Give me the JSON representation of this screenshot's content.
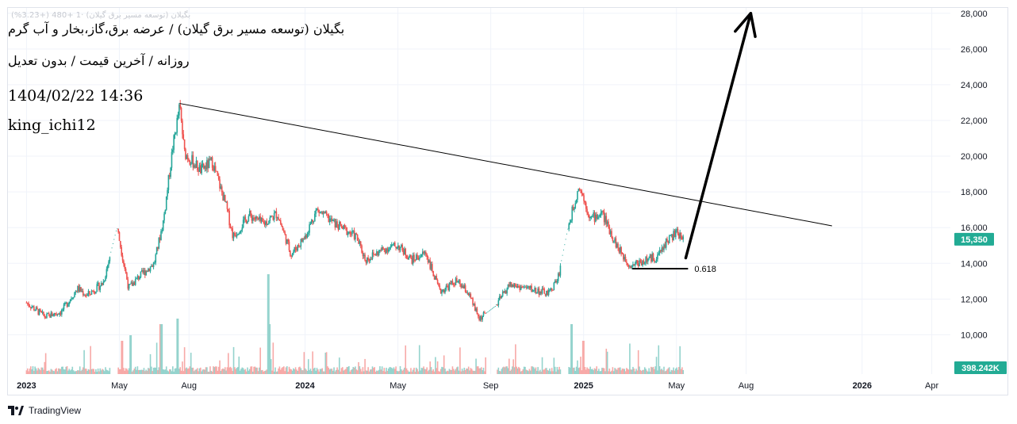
{
  "header": {
    "ghost_text": "بگیلان (توسعه مسیر برق گیلان) ·1  +480 (+3.23%)",
    "title": "بگیلان (توسعه مسیر برق گیلان) / عرضه برق،گاز،بخار و آب گرم",
    "subtitle": "روزانه / آخرین قیمت / بدون تعدیل",
    "date": "1404/02/22 14:36",
    "author": "king_ichi12"
  },
  "brand": {
    "label": "TradingView",
    "icon": "tradingview-logo-icon"
  },
  "colors": {
    "up": "#26a69a",
    "down": "#ef5350",
    "volume_up": "#94d3cd",
    "volume_down": "#f7a9a7",
    "badge": "#22ab94",
    "grid": "#f0f3fa",
    "trendline": "#000000"
  },
  "chart_data": {
    "type": "candlestick",
    "title": "بگیلان (توسعه مسیر برق گیلان) / عرضه برق،گاز،بخار و آب گرم",
    "interval": "روزانه",
    "y_axis": {
      "ticks": [
        "28,000",
        "26,000",
        "24,000",
        "22,000",
        "20,000",
        "18,000",
        "16,000",
        "14,000",
        "12,000",
        "10,000"
      ],
      "tick_values": [
        28000,
        26000,
        24000,
        22000,
        20000,
        18000,
        16000,
        14000,
        12000,
        10000
      ],
      "ylim": [
        7800,
        28300
      ]
    },
    "x_axis": {
      "labels": [
        {
          "text": "2023",
          "year": true
        },
        {
          "text": "May",
          "year": false
        },
        {
          "text": "Aug",
          "year": false
        },
        {
          "text": "2024",
          "year": true
        },
        {
          "text": "May",
          "year": false
        },
        {
          "text": "Sep",
          "year": false
        },
        {
          "text": "2025",
          "year": true
        },
        {
          "text": "May",
          "year": false
        },
        {
          "text": "Aug",
          "year": false
        },
        {
          "text": "2026",
          "year": true
        },
        {
          "text": "Apr",
          "year": false
        }
      ],
      "label_months": [
        0,
        4,
        7,
        12,
        16,
        20,
        24,
        28,
        31,
        36,
        39
      ],
      "range_months": [
        -0.8,
        39.8
      ]
    },
    "price_path": [
      [
        0,
        11800
      ],
      [
        0.8,
        11000
      ],
      [
        1.5,
        11300
      ],
      [
        2.2,
        12600
      ],
      [
        2.6,
        12200
      ],
      [
        3.3,
        12900
      ],
      [
        3.9,
        16000
      ],
      [
        4.4,
        12600
      ],
      [
        4.8,
        13200
      ],
      [
        5.5,
        14000
      ],
      [
        5.9,
        16400
      ],
      [
        6.3,
        20500
      ],
      [
        6.6,
        22800
      ],
      [
        6.8,
        20200
      ],
      [
        7.5,
        19200
      ],
      [
        8.0,
        19700
      ],
      [
        8.6,
        17200
      ],
      [
        8.9,
        15500
      ],
      [
        9.6,
        16700
      ],
      [
        10.2,
        16200
      ],
      [
        10.8,
        16800
      ],
      [
        11.4,
        14500
      ],
      [
        12.0,
        15500
      ],
      [
        12.5,
        17000
      ],
      [
        13.3,
        16200
      ],
      [
        14.2,
        15500
      ],
      [
        14.6,
        14200
      ],
      [
        15.4,
        14800
      ],
      [
        16.0,
        15000
      ],
      [
        16.6,
        14200
      ],
      [
        17.2,
        14600
      ],
      [
        17.8,
        12400
      ],
      [
        18.5,
        13000
      ],
      [
        19.0,
        12400
      ],
      [
        19.5,
        10900
      ],
      [
        20.2,
        11600
      ],
      [
        20.8,
        12800
      ],
      [
        21.6,
        12600
      ],
      [
        22.5,
        12300
      ],
      [
        22.9,
        13200
      ],
      [
        23.3,
        15800
      ],
      [
        23.8,
        18400
      ],
      [
        24.3,
        16500
      ],
      [
        24.8,
        16800
      ],
      [
        25.5,
        14800
      ],
      [
        26.0,
        13900
      ],
      [
        26.5,
        14100
      ],
      [
        27.2,
        14400
      ],
      [
        27.6,
        15300
      ],
      [
        28.0,
        15700
      ],
      [
        28.3,
        15350
      ]
    ],
    "gaps_months": [
      [
        3.6,
        3.95
      ],
      [
        19.8,
        20.25
      ],
      [
        23.0,
        23.35
      ]
    ],
    "last_price": "15,350",
    "last_volume": "398.242K",
    "annotations": {
      "trendline": {
        "from": [
          6.6,
          22950
        ],
        "to": [
          34.7,
          16100
        ]
      },
      "support": {
        "from": [
          26.1,
          13700
        ],
        "to": [
          28.5,
          13700
        ],
        "label": "0.618"
      },
      "arrow": {
        "from": [
          28.4,
          14300
        ],
        "to": [
          31.2,
          28000
        ]
      }
    },
    "volume_spikes": [
      {
        "m": 3.8,
        "v": 0.75
      },
      {
        "m": 4.5,
        "v": 0.35
      },
      {
        "m": 5.8,
        "v": 0.45
      },
      {
        "m": 6.5,
        "v": 0.5
      },
      {
        "m": 10.4,
        "v": 0.9
      },
      {
        "m": 10.5,
        "v": 0.45
      },
      {
        "m": 23.5,
        "v": 0.45
      },
      {
        "m": 24.0,
        "v": 0.3
      },
      {
        "m": 4.1,
        "v": 0.3
      }
    ]
  }
}
